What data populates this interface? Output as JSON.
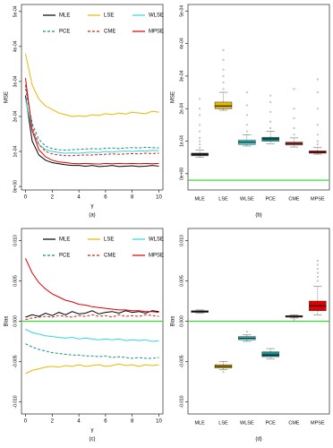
{
  "chart_data": [
    {
      "type": "line",
      "ylabel": "MSE",
      "xlabel": "γ",
      "caption": "(a)",
      "xlim": [
        -0.3,
        10.3
      ],
      "xticks": [
        0,
        2,
        4,
        6,
        8,
        10
      ],
      "ylim": [
        -1e-05,
        0.00052
      ],
      "yticks": [
        {
          "value": 0,
          "label": "0e+00"
        },
        {
          "value": 0.0001,
          "label": "1e-04"
        },
        {
          "value": 0.0002,
          "label": "2e-04"
        },
        {
          "value": 0.0003,
          "label": "3e-04"
        },
        {
          "value": 0.0004,
          "label": "4e-04"
        },
        {
          "value": 0.0005,
          "label": "5e-04"
        }
      ],
      "x": [
        0,
        0.5,
        1,
        1.5,
        2,
        2.5,
        3,
        3.5,
        4,
        4.5,
        5,
        5.5,
        6,
        6.5,
        7,
        7.5,
        8,
        8.5,
        9,
        9.5,
        10
      ],
      "series": [
        {
          "name": "MLE",
          "color": "#000000",
          "dash": false,
          "values": [
            0.00026,
            0.00013,
            9e-05,
            7.5e-05,
            6.8e-05,
            6.5e-05,
            6.2e-05,
            6e-05,
            6e-05,
            5.8e-05,
            6e-05,
            5.7e-05,
            5.8e-05,
            6e-05,
            5.7e-05,
            5.8e-05,
            5.9e-05,
            5.7e-05,
            5.8e-05,
            6e-05,
            5.8e-05
          ]
        },
        {
          "name": "LSE",
          "color": "#e6b800",
          "dash": false,
          "values": [
            0.00038,
            0.00029,
            0.00025,
            0.00023,
            0.00022,
            0.00021,
            0.000205,
            0.0002,
            0.000202,
            0.0002,
            0.000205,
            0.000203,
            0.000208,
            0.000205,
            0.00021,
            0.000207,
            0.000212,
            0.00021,
            0.000208,
            0.000215,
            0.000212
          ]
        },
        {
          "name": "WLSE",
          "color": "#33d6d6",
          "dash": false,
          "values": [
            0.00025,
            0.00016,
            0.00012,
            0.000105,
            0.0001,
            9.7e-05,
            9.5e-05,
            9.6e-05,
            9.5e-05,
            9.7e-05,
            9.8e-05,
            9.7e-05,
            0.0001,
            9.8e-05,
            0.0001,
            0.000101,
            0.0001,
            0.000102,
            0.000101,
            0.000103,
            0.000102
          ]
        },
        {
          "name": "PCE",
          "color": "#138f8f",
          "dash": true,
          "values": [
            0.00028,
            0.00018,
            0.000135,
            0.000115,
            0.000108,
            0.000105,
            0.000104,
            0.000105,
            0.000106,
            0.000107,
            0.000108,
            0.000107,
            0.000109,
            0.00011,
            0.000108,
            0.00011,
            0.000111,
            0.00011,
            0.000112,
            0.000111,
            0.00011
          ]
        },
        {
          "name": "CME",
          "color": "#d82020",
          "dash": true,
          "values": [
            0.00029,
            0.00017,
            0.00012,
            0.0001,
            9.3e-05,
            9e-05,
            8.8e-05,
            8.8e-05,
            8.9e-05,
            9e-05,
            9e-05,
            9.1e-05,
            9.2e-05,
            9.3e-05,
            9.2e-05,
            9.3e-05,
            9.4e-05,
            9.3e-05,
            9.5e-05,
            9.4e-05,
            9.5e-05
          ]
        },
        {
          "name": "MPSE",
          "color": "#e00000",
          "dash": false,
          "values": [
            0.00031,
            0.00016,
            0.000105,
            8.5e-05,
            7.5e-05,
            7e-05,
            6.8e-05,
            6.6e-05,
            6.5e-05,
            6.6e-05,
            6.5e-05,
            6.4e-05,
            6.6e-05,
            6.5e-05,
            6.6e-05,
            6.5e-05,
            6.6e-05,
            6.5e-05,
            6.6e-05,
            6.5e-05,
            6.6e-05
          ]
        }
      ]
    },
    {
      "type": "box",
      "ylabel": "MSE",
      "caption": "(b)",
      "ylim": [
        -5e-05,
        0.00052
      ],
      "yticks": [
        {
          "value": 0,
          "label": "0e+00"
        },
        {
          "value": 0.0001,
          "label": "1e-04"
        },
        {
          "value": 0.0002,
          "label": "2e-04"
        },
        {
          "value": 0.0003,
          "label": "3e-04"
        },
        {
          "value": 0.0004,
          "label": "4e-04"
        },
        {
          "value": 0.0005,
          "label": "5e-04"
        }
      ],
      "hline": -2e-05,
      "hline_color": "#33dd33",
      "boxes": [
        {
          "name": "MLE",
          "color": "#333333",
          "whislo": 5e-05,
          "q1": 5.5e-05,
          "median": 6e-05,
          "q3": 6.3e-05,
          "whishi": 7.2e-05,
          "outliers": [
            8e-05,
            9e-05,
            0.0001,
            0.00011,
            0.00013,
            0.00015,
            0.00018,
            0.0002,
            0.00023
          ]
        },
        {
          "name": "LSE",
          "color": "#e6b800",
          "whislo": 0.000195,
          "q1": 0.0002,
          "median": 0.000208,
          "q3": 0.00022,
          "whishi": 0.00025,
          "outliers": [
            0.00026,
            0.00028,
            0.0003,
            0.00032,
            0.00035,
            0.00038
          ]
        },
        {
          "name": "WLSE",
          "color": "#33d6d6",
          "whislo": 8.5e-05,
          "q1": 9e-05,
          "median": 9.7e-05,
          "q3": 0.000103,
          "whishi": 0.00012,
          "outliers": [
            0.00013,
            0.00015,
            0.00018,
            0.00021,
            0.00025
          ]
        },
        {
          "name": "PCE",
          "color": "#138f8f",
          "whislo": 9.2e-05,
          "q1": 0.0001,
          "median": 0.000107,
          "q3": 0.000112,
          "whishi": 0.00013,
          "outliers": [
            0.00014,
            0.00016,
            0.00019,
            0.00022,
            0.00024
          ]
        },
        {
          "name": "CME",
          "color": "#d84040",
          "whislo": 8.2e-05,
          "q1": 8.8e-05,
          "median": 9.3e-05,
          "q3": 9.7e-05,
          "whishi": 0.00011,
          "outliers": [
            0.00012,
            0.00014,
            0.00017,
            0.0002,
            0.00026
          ]
        },
        {
          "name": "MPSE",
          "color": "#e00000",
          "whislo": 6e-05,
          "q1": 6.3e-05,
          "median": 6.6e-05,
          "q3": 7e-05,
          "whishi": 8e-05,
          "outliers": [
            9e-05,
            0.0001,
            0.00012,
            0.00015,
            0.0002,
            0.00025,
            0.00029
          ]
        }
      ]
    },
    {
      "type": "line",
      "ylabel": "Bias",
      "xlabel": "γ",
      "caption": "(c)",
      "xlim": [
        -0.3,
        10.3
      ],
      "xticks": [
        0,
        2,
        4,
        6,
        8,
        10
      ],
      "ylim": [
        -0.0115,
        0.0115
      ],
      "yticks": [
        {
          "value": -0.01,
          "label": "-0.010"
        },
        -0.005,
        {
          "value": 0,
          "label": "0.000"
        },
        0.005,
        {
          "value": 0.01,
          "label": "0.010"
        }
      ],
      "hline": 0,
      "hline_color": "#33dd33",
      "x": [
        0,
        0.5,
        1,
        1.5,
        2,
        2.5,
        3,
        3.5,
        4,
        4.5,
        5,
        5.5,
        6,
        6.5,
        7,
        7.5,
        8,
        8.5,
        9,
        9.5,
        10
      ],
      "series": [
        {
          "name": "MLE",
          "color": "#000000",
          "dash": false,
          "values": [
            0.0005,
            0.0008,
            0.0006,
            0.001,
            0.0007,
            0.0011,
            0.0008,
            0.0012,
            0.0009,
            0.001,
            0.0013,
            0.0009,
            0.0011,
            0.0012,
            0.001,
            0.0013,
            0.0011,
            0.0012,
            0.001,
            0.0013,
            0.0012
          ]
        },
        {
          "name": "LSE",
          "color": "#e6b800",
          "dash": false,
          "values": [
            -0.0065,
            -0.0061,
            -0.0059,
            -0.0057,
            -0.0056,
            -0.0057,
            -0.0055,
            -0.0056,
            -0.0054,
            -0.0056,
            -0.0055,
            -0.0054,
            -0.0056,
            -0.0055,
            -0.0053,
            -0.0055,
            -0.0054,
            -0.0056,
            -0.0054,
            -0.0055,
            -0.0054
          ]
        },
        {
          "name": "WLSE",
          "color": "#33d6d6",
          "dash": false,
          "values": [
            -0.001,
            -0.0014,
            -0.0016,
            -0.0018,
            -0.0019,
            -0.002,
            -0.0021,
            -0.002,
            -0.0022,
            -0.0021,
            -0.0022,
            -0.0023,
            -0.0022,
            -0.0023,
            -0.0022,
            -0.0024,
            -0.0023,
            -0.0024,
            -0.0023,
            -0.0025,
            -0.0024
          ]
        },
        {
          "name": "PCE",
          "color": "#138f8f",
          "dash": true,
          "values": [
            -0.0028,
            -0.0032,
            -0.0035,
            -0.0037,
            -0.0039,
            -0.004,
            -0.0041,
            -0.0042,
            -0.0042,
            -0.0043,
            -0.0043,
            -0.0044,
            -0.0043,
            -0.0045,
            -0.0044,
            -0.0045,
            -0.0046,
            -0.0045,
            -0.0046,
            -0.0046,
            -0.0045
          ]
        },
        {
          "name": "CME",
          "color": "#d82020",
          "dash": true,
          "values": [
            0.0002,
            0.0004,
            0.0005,
            0.0006,
            0.0005,
            0.0007,
            0.0006,
            0.0005,
            0.0007,
            0.0006,
            0.0008,
            0.0006,
            0.0007,
            0.0005,
            0.0008,
            0.0006,
            0.0007,
            0.0006,
            0.0008,
            0.0007,
            0.0006
          ]
        },
        {
          "name": "MPSE",
          "color": "#e00000",
          "dash": false,
          "values": [
            0.0078,
            0.006,
            0.0048,
            0.004,
            0.0034,
            0.003,
            0.0026,
            0.0024,
            0.0021,
            0.002,
            0.0018,
            0.0017,
            0.0016,
            0.0015,
            0.0014,
            0.0014,
            0.0013,
            0.0013,
            0.0012,
            0.0012,
            0.0011
          ]
        }
      ]
    },
    {
      "type": "box",
      "ylabel": "Bias",
      "caption": "(d)",
      "ylim": [
        -0.0115,
        0.0115
      ],
      "yticks": [
        {
          "value": -0.01,
          "label": "-0.010"
        },
        -0.005,
        {
          "value": 0,
          "label": "0.000"
        },
        0.005,
        {
          "value": 0.01,
          "label": "0.010"
        }
      ],
      "hline": 0,
      "hline_color": "#33dd33",
      "boxes": [
        {
          "name": "MLE",
          "color": "#333333",
          "whislo": 0.001,
          "q1": 0.0011,
          "median": 0.0012,
          "q3": 0.0013,
          "whishi": 0.0014,
          "outliers": []
        },
        {
          "name": "LSE",
          "color": "#e6b800",
          "whislo": -0.006,
          "q1": -0.0058,
          "median": -0.0056,
          "q3": -0.0054,
          "whishi": -0.005,
          "outliers": [
            -0.0063
          ]
        },
        {
          "name": "WLSE",
          "color": "#33d6d6",
          "whislo": -0.0025,
          "q1": -0.0023,
          "median": -0.0021,
          "q3": -0.0019,
          "whishi": -0.0017,
          "outliers": [
            -0.0013
          ]
        },
        {
          "name": "PCE",
          "color": "#138f8f",
          "whislo": -0.0047,
          "q1": -0.0044,
          "median": -0.0042,
          "q3": -0.0038,
          "whishi": -0.0034,
          "outliers": []
        },
        {
          "name": "CME",
          "color": "#d84040",
          "whislo": 0.0004,
          "q1": 0.0005,
          "median": 0.0006,
          "q3": 0.0007,
          "whishi": 0.0008,
          "outliers": [
            0.0002
          ]
        },
        {
          "name": "MPSE",
          "color": "#e00000",
          "whislo": 0.0008,
          "q1": 0.0013,
          "median": 0.0019,
          "q3": 0.0025,
          "whishi": 0.0043,
          "outliers": [
            0.005,
            0.0055,
            0.006,
            0.0065,
            0.007,
            0.0075
          ]
        }
      ]
    }
  ]
}
